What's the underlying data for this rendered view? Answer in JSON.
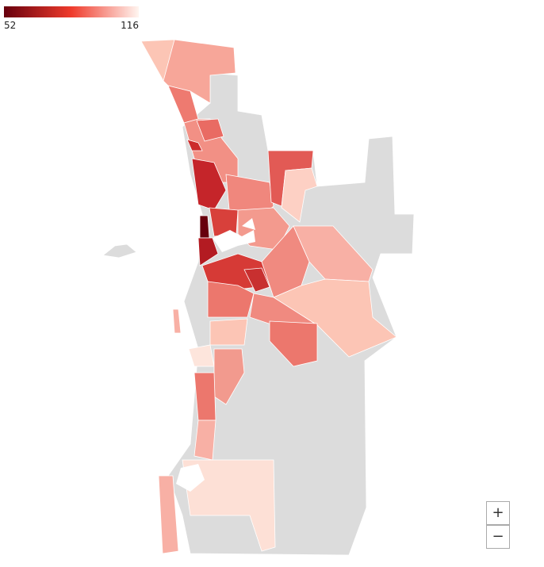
{
  "legend": {
    "min": 52,
    "max": 116
  },
  "zoom": {
    "in": "+",
    "out": "−"
  }
}
